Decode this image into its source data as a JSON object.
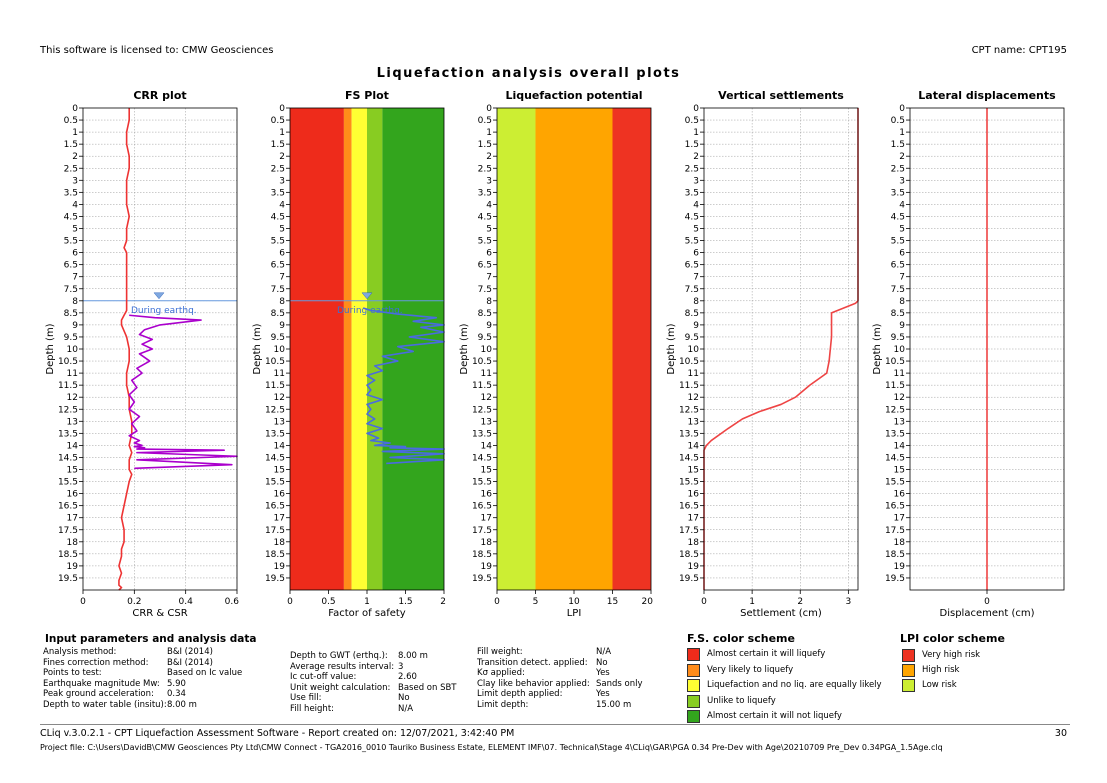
{
  "header": {
    "license": "This software is licensed to: CMW Geosciences",
    "cpt_name": "CPT name: CPT195",
    "title": "Liquefaction analysis overall plots"
  },
  "chart_data": [
    {
      "type": "line",
      "title": "CRR plot",
      "xlabel": "CRR & CSR",
      "ylabel": "Depth (m)",
      "xlim": [
        0,
        0.6
      ],
      "xticks": [
        "0",
        "0.2",
        "0.4",
        "0.6"
      ],
      "ylim": [
        0,
        20
      ],
      "grid": true,
      "gwt_depth": 8.0,
      "gwt_label": "During earthq.",
      "series": [
        {
          "color": "#ee3333",
          "x": [
            0.18,
            0.18,
            0.17,
            0.17,
            0.18,
            0.18,
            0.17,
            0.17,
            0.17,
            0.18,
            0.17,
            0.17,
            0.17,
            0.16,
            0.17,
            0.17,
            0.17,
            0.17,
            0.17,
            0.17,
            0.17,
            0.16,
            0.15,
            0.15,
            0.17,
            0.18,
            0.18,
            0.17,
            0.17,
            0.18,
            0.18,
            0.19,
            0.19,
            0.18,
            0.19,
            0.18,
            0.18,
            0.19,
            0.18,
            0.17,
            0.16,
            0.15,
            0.16,
            0.16,
            0.15,
            0.15,
            0.14,
            0.15,
            0.14,
            0.14,
            0.15,
            0.14
          ],
          "y": [
            0,
            0.5,
            1,
            1.5,
            2,
            2.5,
            3,
            3.5,
            4,
            4.5,
            5,
            5.2,
            5.5,
            5.8,
            6,
            6.5,
            7,
            7.5,
            8,
            8.2,
            8.4,
            8.6,
            8.8,
            9,
            9.5,
            10,
            10.5,
            11,
            11.5,
            12,
            12.5,
            13,
            13.5,
            14,
            14.3,
            14.6,
            15,
            15.2,
            15.5,
            16,
            16.5,
            17,
            17.5,
            18,
            18.3,
            18.6,
            19,
            19.3,
            19.6,
            19.8,
            19.9,
            20
          ]
        },
        {
          "color": "#aa00cc",
          "x": [
            0.18,
            0.28,
            0.46,
            0.3,
            0.24,
            0.22,
            0.27,
            0.23,
            0.27,
            0.22,
            0.26,
            0.21,
            0.23,
            0.19,
            0.21,
            0.18,
            0.2,
            0.18,
            0.22,
            0.19,
            0.21,
            0.18,
            0.22,
            0.2,
            0.23,
            0.2,
            0.24,
            0.21,
            0.55,
            0.21,
            0.6,
            0.21,
            0.58,
            0.2
          ],
          "y": [
            8.6,
            8.7,
            8.8,
            9.0,
            9.2,
            9.4,
            9.6,
            9.8,
            10.0,
            10.2,
            10.5,
            10.8,
            11.0,
            11.3,
            11.6,
            11.9,
            12.2,
            12.5,
            12.8,
            13.1,
            13.4,
            13.6,
            13.8,
            13.9,
            14.0,
            14.05,
            14.1,
            14.15,
            14.2,
            14.3,
            14.45,
            14.6,
            14.8,
            14.95
          ]
        }
      ]
    },
    {
      "type": "line",
      "title": "FS Plot",
      "xlabel": "Factor of safety",
      "ylabel": "Depth (m)",
      "xlim": [
        0,
        2
      ],
      "xticks": [
        "0",
        "0.5",
        "1",
        "1.5",
        "2"
      ],
      "ylim": [
        0,
        20
      ],
      "gwt_depth": 8.0,
      "gwt_label": "During earthq.",
      "bands": [
        {
          "from": 0,
          "to": 0.7,
          "color": "#ee2b1b"
        },
        {
          "from": 0.7,
          "to": 0.8,
          "color": "#ff8c1a"
        },
        {
          "from": 0.8,
          "to": 1.0,
          "color": "#ffff33"
        },
        {
          "from": 1.0,
          "to": 1.2,
          "color": "#88cc22"
        },
        {
          "from": 1.2,
          "to": 2.0,
          "color": "#33a51d"
        }
      ],
      "series": [
        {
          "color": "#4a6be0",
          "x": [
            0.95,
            1.05,
            1.4,
            1.9,
            1.6,
            2.0,
            1.7,
            2.0,
            1.55,
            2.0,
            1.4,
            1.6,
            1.2,
            1.4,
            1.1,
            1.2,
            1.0,
            1.1,
            1.0,
            1.05,
            1.0,
            1.2,
            1.0,
            1.05,
            1.0,
            1.1,
            1.0,
            1.2,
            1.0,
            1.15,
            1.05,
            1.3,
            1.1,
            1.5,
            1.3,
            2.0,
            1.2,
            2.0,
            1.3,
            2.0,
            1.25
          ],
          "y": [
            8.3,
            8.4,
            8.55,
            8.7,
            8.85,
            9.0,
            9.1,
            9.3,
            9.5,
            9.7,
            9.9,
            10.1,
            10.3,
            10.5,
            10.7,
            10.9,
            11.1,
            11.3,
            11.5,
            11.7,
            11.9,
            12.1,
            12.3,
            12.5,
            12.7,
            12.9,
            13.1,
            13.3,
            13.5,
            13.7,
            13.8,
            13.9,
            14.0,
            14.05,
            14.1,
            14.15,
            14.25,
            14.35,
            14.5,
            14.6,
            14.75
          ]
        }
      ]
    },
    {
      "type": "area",
      "title": "Liquefaction potential",
      "xlabel": "LPI",
      "ylabel": "Depth (m)",
      "xlim": [
        0,
        20
      ],
      "xticks": [
        "0",
        "5",
        "10",
        "15",
        "20"
      ],
      "ylim": [
        0,
        20
      ],
      "bands": [
        {
          "from": 0,
          "to": 5,
          "color": "#ccee33"
        },
        {
          "from": 5,
          "to": 15,
          "color": "#ffa500"
        },
        {
          "from": 15,
          "to": 20,
          "color": "#ee3322"
        }
      ]
    },
    {
      "type": "line",
      "title": "Vertical settlements",
      "xlabel": "Settlement (cm)",
      "ylabel": "Depth (m)",
      "xlim": [
        0,
        3.2
      ],
      "xticks": [
        "0",
        "1",
        "2",
        "3"
      ],
      "ylim": [
        0,
        20
      ],
      "grid": true,
      "series": [
        {
          "color": "#ee4444",
          "x": [
            3.2,
            3.2,
            3.2,
            3.15,
            2.65,
            2.65,
            2.6,
            2.55,
            2.2,
            1.9,
            1.6,
            1.15,
            0.8,
            0.5,
            0.15,
            0.05,
            0,
            0
          ],
          "y": [
            0,
            7.5,
            8.0,
            8.1,
            8.5,
            9.5,
            10.5,
            11.0,
            11.5,
            12.0,
            12.3,
            12.6,
            12.9,
            13.3,
            13.8,
            14.0,
            14.2,
            20
          ]
        }
      ]
    },
    {
      "type": "line",
      "title": "Lateral displacements",
      "xlabel": "Displacement (cm)",
      "ylabel": "Depth (m)",
      "xlim": [
        -1,
        1
      ],
      "xticks": [
        "0"
      ],
      "ylim": [
        0,
        20
      ],
      "grid": true,
      "series": [
        {
          "color": "#ee4444",
          "x": [
            0,
            0
          ],
          "y": [
            0,
            20
          ]
        }
      ]
    }
  ],
  "input_params": {
    "title": "Input parameters and analysis data",
    "rows": [
      {
        "label": "Analysis method:",
        "value": "B&I (2014)"
      },
      {
        "label": "Fines correction method:",
        "value": "B&I (2014)"
      },
      {
        "label": "Points to test:",
        "value": "Based on Ic value"
      },
      {
        "label": "Earthquake magnitude Mw:",
        "value": "5.90"
      },
      {
        "label": "Peak ground acceleration:",
        "value": "0.34"
      },
      {
        "label": "Depth to water table (insitu):",
        "value": "8.00 m"
      }
    ],
    "rows2": [
      {
        "label": "Depth to GWT (erthq.):",
        "value": "8.00 m"
      },
      {
        "label": "Average results interval:",
        "value": "3"
      },
      {
        "label": "Ic cut-off value:",
        "value": "2.60"
      },
      {
        "label": "Unit weight calculation:",
        "value": "Based on SBT"
      },
      {
        "label": "Use fill:",
        "value": "No"
      },
      {
        "label": "Fill height:",
        "value": "N/A"
      }
    ],
    "rows3": [
      {
        "label": "Fill weight:",
        "value": "N/A"
      },
      {
        "label": "Transition detect. applied:",
        "value": "No"
      },
      {
        "label": "Kσ applied:",
        "value": "Yes"
      },
      {
        "label": "Clay like behavior applied:",
        "value": "Sands only"
      },
      {
        "label": "Limit depth applied:",
        "value": "Yes"
      },
      {
        "label": "Limit depth:",
        "value": "15.00 m"
      }
    ]
  },
  "fs_scheme": {
    "title": "F.S. color scheme",
    "items": [
      {
        "color": "#ee2b1b",
        "label": "Almost certain it will liquefy"
      },
      {
        "color": "#ff8c1a",
        "label": "Very likely to liquefy"
      },
      {
        "color": "#ffff33",
        "label": "Liquefaction and no liq. are equally likely"
      },
      {
        "color": "#88cc22",
        "label": "Unlike to liquefy"
      },
      {
        "color": "#33a51d",
        "label": "Almost certain it will not liquefy"
      }
    ]
  },
  "lpi_scheme": {
    "title": "LPI color scheme",
    "items": [
      {
        "color": "#ee3322",
        "label": "Very high risk"
      },
      {
        "color": "#ffa500",
        "label": "High risk"
      },
      {
        "color": "#ccee33",
        "label": "Low risk"
      }
    ]
  },
  "footer": {
    "software": "CLiq v.3.0.2.1 - CPT Liquefaction Assessment Software - Report created on: 12/07/2021, 3:42:40 PM",
    "page": "30",
    "project": "Project file: C:\\Users\\DavidB\\CMW Geosciences Pty Ltd\\CMW Connect - TGA2016_0010 Tauriko Business Estate, ELEMENT IMF\\07. Technical\\Stage 4\\CLiq\\GAR\\PGA 0.34 Pre-Dev with Age\\20210709 Pre_Dev 0.34PGA_1.5Age.clq"
  }
}
